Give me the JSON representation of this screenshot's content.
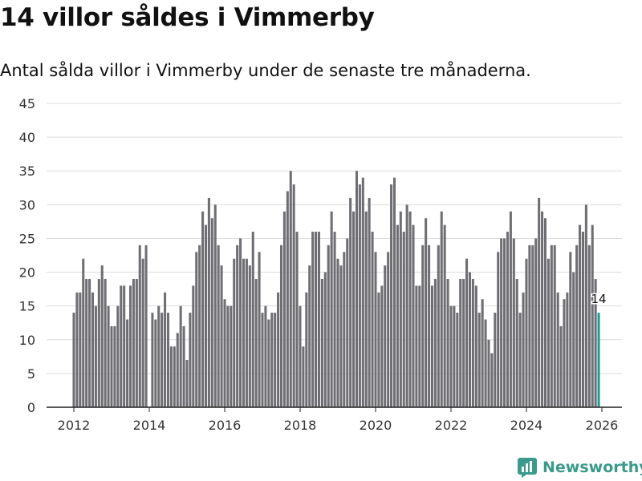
{
  "title": "14 villor såldes i Vimmerby",
  "subtitle": "Antal sålda villor i Vimmerby under de senaste tre månaderna.",
  "brand": {
    "name": "Newsworthy",
    "icon": "newsworthy-logo-icon",
    "color": "#3a9a8c"
  },
  "colors": {
    "bar": "#6e6e73",
    "highlight": "#1a9e8f",
    "grid": "#dedede",
    "axis": "#222222"
  },
  "chart_data": {
    "type": "bar",
    "title": "14 villor såldes i Vimmerby",
    "xlabel": "",
    "ylabel": "",
    "ylim": [
      0,
      45
    ],
    "yticks": [
      0,
      5,
      10,
      15,
      20,
      25,
      30,
      35,
      40,
      45
    ],
    "xticks": [
      2012,
      2014,
      2016,
      2018,
      2020,
      2022,
      2024,
      2026
    ],
    "x_start": 2012.0,
    "x_step_years": 0.08333,
    "values": [
      14,
      17,
      17,
      22,
      19,
      19,
      17,
      15,
      19,
      21,
      19,
      15,
      12,
      12,
      15,
      18,
      18,
      13,
      18,
      19,
      19,
      24,
      22,
      24,
      0,
      14,
      13,
      15,
      14,
      17,
      14,
      9,
      9,
      11,
      15,
      12,
      7,
      14,
      18,
      23,
      24,
      29,
      27,
      31,
      28,
      30,
      24,
      21,
      16,
      15,
      15,
      22,
      24,
      25,
      22,
      22,
      21,
      26,
      19,
      23,
      14,
      15,
      13,
      14,
      14,
      17,
      24,
      29,
      32,
      35,
      33,
      26,
      15,
      9,
      17,
      21,
      26,
      26,
      26,
      19,
      20,
      24,
      29,
      26,
      22,
      21,
      23,
      25,
      31,
      29,
      35,
      33,
      34,
      29,
      31,
      26,
      23,
      17,
      18,
      21,
      23,
      33,
      34,
      27,
      29,
      26,
      30,
      29,
      27,
      18,
      18,
      24,
      28,
      24,
      18,
      19,
      24,
      29,
      27,
      19,
      15,
      15,
      14,
      19,
      19,
      22,
      20,
      19,
      18,
      14,
      16,
      13,
      10,
      8,
      14,
      23,
      25,
      25,
      26,
      29,
      25,
      19,
      14,
      17,
      22,
      24,
      24,
      25,
      31,
      29,
      28,
      22,
      24,
      24,
      17,
      12,
      16,
      17,
      23,
      20,
      24,
      27,
      26,
      30,
      24,
      27,
      19,
      14
    ],
    "highlight_last": true,
    "annotation": {
      "label": "14"
    }
  }
}
